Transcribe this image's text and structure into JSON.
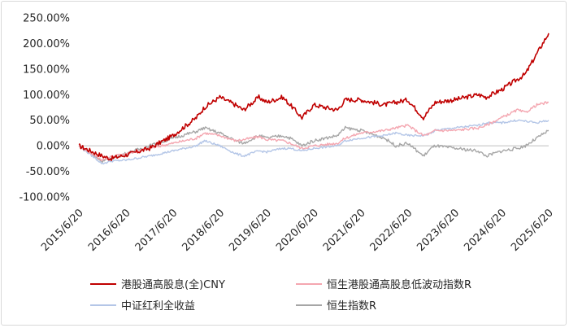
{
  "chart_data": {
    "type": "line",
    "title": "",
    "xlabel": "",
    "ylabel": "",
    "ylim": [
      -1.0,
      2.5
    ],
    "y_ticks": [
      -1.0,
      -0.5,
      0.0,
      0.5,
      1.0,
      1.5,
      2.0,
      2.5
    ],
    "y_tick_labels": [
      "-100.00%",
      "-50.00%",
      "0.00%",
      "50.00%",
      "100.00%",
      "150.00%",
      "200.00%",
      "250.00%"
    ],
    "x_ticks": [
      "2015/6/20",
      "2016/6/20",
      "2017/6/20",
      "2018/6/20",
      "2019/6/20",
      "2020/6/20",
      "2021/6/20",
      "2022/6/20",
      "2023/6/20",
      "2024/6/20",
      "2025/6/20"
    ],
    "grid": false,
    "legend_position": "bottom",
    "x": [
      "2015/6/20",
      "2015/12/20",
      "2016/2/20",
      "2016/6/20",
      "2016/12/20",
      "2017/6/20",
      "2017/12/20",
      "2018/2/20",
      "2018/6/20",
      "2018/10/20",
      "2018/12/20",
      "2019/4/20",
      "2019/6/20",
      "2019/10/20",
      "2019/12/20",
      "2020/3/20",
      "2020/6/20",
      "2020/12/20",
      "2021/2/20",
      "2021/6/20",
      "2021/12/20",
      "2022/3/20",
      "2022/6/20",
      "2022/10/20",
      "2022/12/20",
      "2023/1/20",
      "2023/6/20",
      "2023/12/20",
      "2024/2/20",
      "2024/6/20",
      "2024/10/20",
      "2024/12/20",
      "2025/3/20",
      "2025/6/20"
    ],
    "series": [
      {
        "name": "港股通高股息(全)CNY",
        "color": "#c00000",
        "values": [
          0.0,
          -0.2,
          -0.25,
          -0.18,
          -0.05,
          0.2,
          0.55,
          0.75,
          0.95,
          0.8,
          0.7,
          0.95,
          0.85,
          0.95,
          0.8,
          0.55,
          0.8,
          0.7,
          0.9,
          0.9,
          0.8,
          0.85,
          0.9,
          0.55,
          0.75,
          0.85,
          0.9,
          1.0,
          0.95,
          1.1,
          1.3,
          1.4,
          1.8,
          2.2
        ]
      },
      {
        "name": "恒生港股通高股息低波动指数R",
        "color": "#f4a6b0",
        "values": [
          0.0,
          -0.28,
          -0.22,
          -0.15,
          -0.05,
          0.05,
          0.15,
          0.25,
          0.2,
          0.1,
          0.12,
          0.18,
          0.12,
          0.1,
          0.05,
          -0.05,
          0.0,
          0.05,
          0.15,
          0.25,
          0.3,
          0.35,
          0.4,
          0.2,
          0.25,
          0.3,
          0.3,
          0.35,
          0.4,
          0.55,
          0.7,
          0.65,
          0.8,
          0.85
        ]
      },
      {
        "name": "中证红利全收益",
        "color": "#b4c6e7",
        "values": [
          0.0,
          -0.35,
          -0.3,
          -0.28,
          -0.2,
          -0.1,
          0.0,
          0.1,
          0.0,
          -0.15,
          -0.2,
          -0.1,
          -0.12,
          -0.05,
          -0.05,
          -0.1,
          -0.05,
          0.0,
          0.1,
          0.15,
          0.2,
          0.25,
          0.2,
          0.2,
          0.25,
          0.3,
          0.35,
          0.4,
          0.45,
          0.45,
          0.5,
          0.48,
          0.45,
          0.5
        ]
      },
      {
        "name": "恒生指数R",
        "color": "#a6a6a6",
        "values": [
          0.0,
          -0.3,
          -0.25,
          -0.15,
          0.0,
          0.15,
          0.28,
          0.35,
          0.25,
          0.1,
          0.05,
          0.2,
          0.15,
          0.2,
          0.15,
          0.0,
          0.1,
          0.2,
          0.35,
          0.3,
          0.15,
          0.0,
          0.05,
          -0.2,
          -0.05,
          0.0,
          -0.05,
          -0.1,
          -0.2,
          -0.1,
          -0.05,
          0.0,
          0.15,
          0.3
        ]
      }
    ]
  }
}
